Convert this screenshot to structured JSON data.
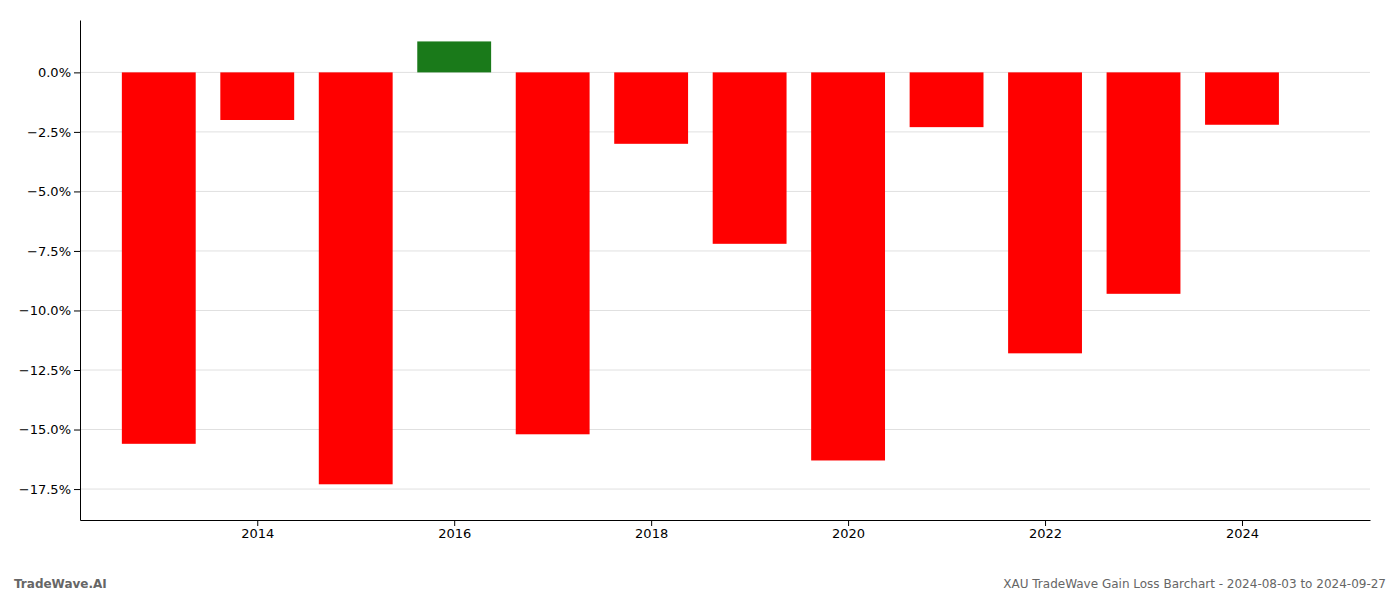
{
  "chart_data": {
    "type": "bar",
    "x": [
      2013,
      2014,
      2015,
      2016,
      2017,
      2018,
      2019,
      2020,
      2021,
      2022,
      2023,
      2024
    ],
    "values": [
      -15.6,
      -2.0,
      -17.3,
      1.3,
      -15.2,
      -3.0,
      -7.2,
      -16.3,
      -2.3,
      -11.8,
      -9.3,
      -2.2
    ],
    "colors": [
      "#FF0000",
      "#FF0000",
      "#FF0000",
      "#1A7A1A",
      "#FF0000",
      "#FF0000",
      "#FF0000",
      "#FF0000",
      "#FF0000",
      "#FF0000",
      "#FF0000",
      "#FF0000"
    ],
    "xlim": [
      2012.2,
      2025.3
    ],
    "xticks": [
      2014,
      2016,
      2018,
      2020,
      2022,
      2024
    ],
    "ylim": [
      -18.8,
      2.2
    ],
    "yticks": [
      {
        "value": 0.0,
        "label": "0.0%"
      },
      {
        "value": -2.5,
        "label": "−2.5%"
      },
      {
        "value": -5.0,
        "label": "−5.0%"
      },
      {
        "value": -7.5,
        "label": "−7.5%"
      },
      {
        "value": -10.0,
        "label": "−10.0%"
      },
      {
        "value": -12.5,
        "label": "−12.5%"
      },
      {
        "value": -15.0,
        "label": "−15.0%"
      },
      {
        "value": -17.5,
        "label": "−17.5%"
      }
    ],
    "grid": true,
    "annotations": [
      "TradeWave.AI",
      "XAU TradeWave Gain Loss Barchart - 2024-08-03 to 2024-09-27"
    ]
  }
}
